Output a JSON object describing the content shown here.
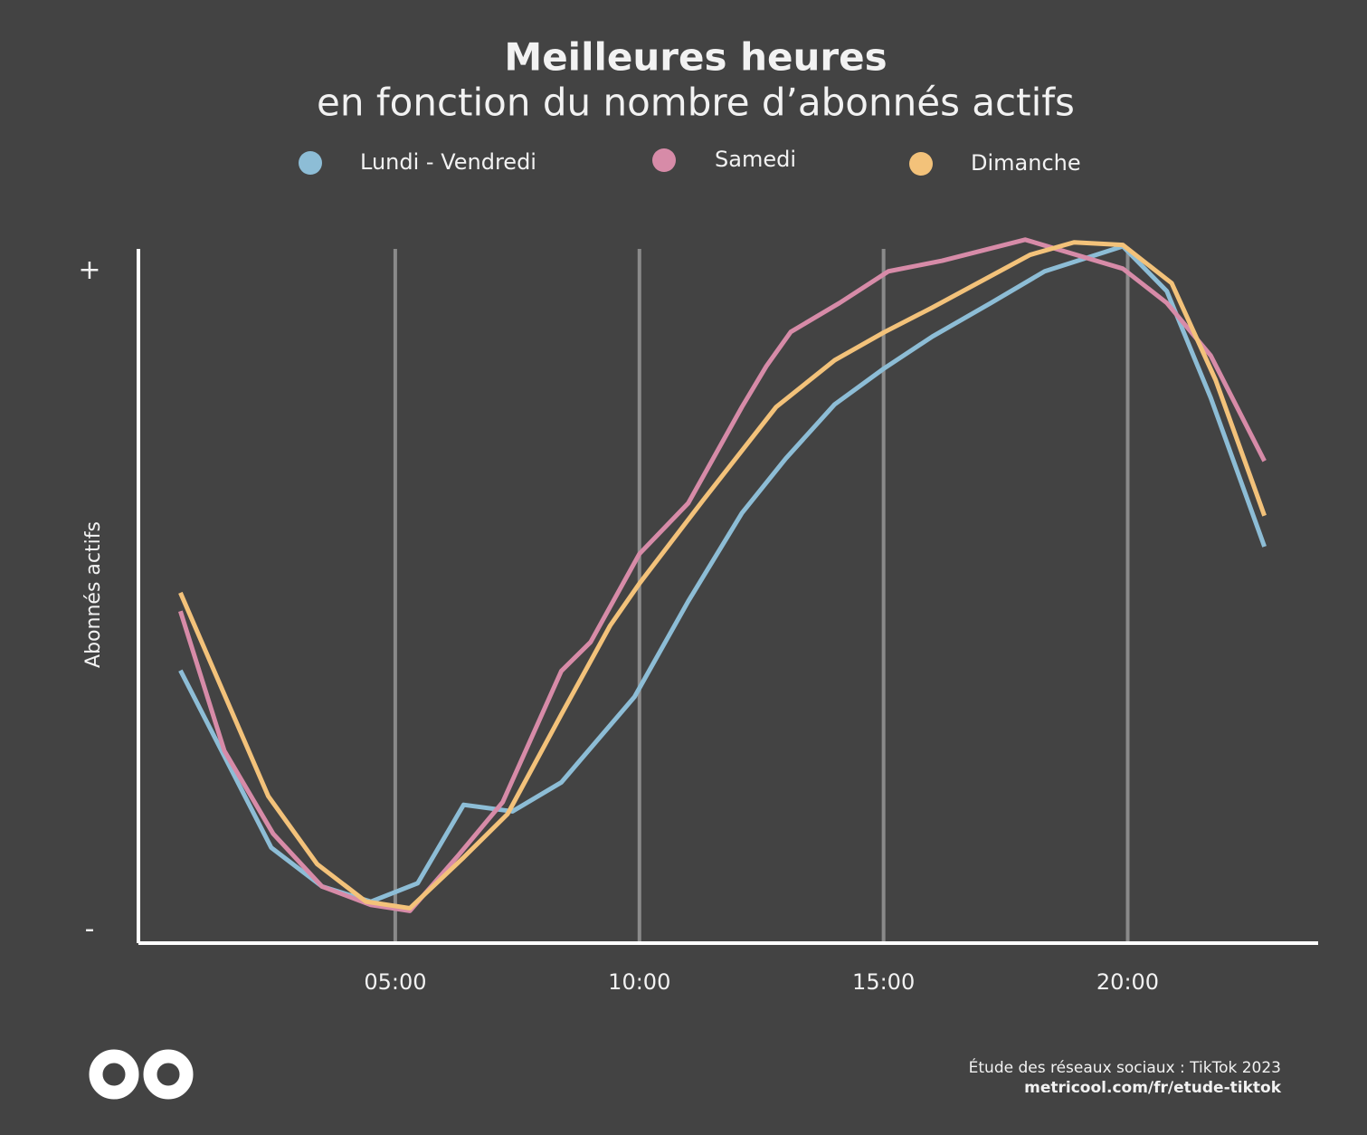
{
  "chart_data": {
    "type": "line",
    "title": "Meilleures heures",
    "subtitle": "en fonction du nombre d’abonnés actifs",
    "y_label": "Abonnés actifs",
    "xlim": [
      -0.26,
      23.9
    ],
    "xticks": [
      {
        "value": 5,
        "label": "05:00"
      },
      {
        "value": 10,
        "label": "10:00"
      },
      {
        "value": 15,
        "label": "15:00"
      },
      {
        "value": 20,
        "label": "20:00"
      }
    ],
    "ylim": [
      -2,
      103.4
    ],
    "yticks": [
      {
        "value": 0,
        "label": "-"
      },
      {
        "value": 100,
        "label": "+"
      }
    ],
    "grid": true,
    "series": [
      {
        "name": "Lundi - Vendredi",
        "color": "#8dbdd6",
        "x": [
          0.6,
          2.46,
          3.5,
          4.5,
          5.46,
          6.4,
          7.4,
          8.4,
          9.9,
          11,
          12.1,
          13,
          14,
          15,
          16,
          17.2,
          18.3,
          19.9,
          20.8,
          21.7,
          22.8
        ],
        "values": [
          39.4,
          12.5,
          6.6,
          4.3,
          7.1,
          19.0,
          18.0,
          22.4,
          35.4,
          49.9,
          63.3,
          71.6,
          79.8,
          85.2,
          90.1,
          95.2,
          100,
          103.8,
          97.0,
          80.8,
          58.2
        ]
      },
      {
        "name": "Samedi",
        "color": "#d78ba8",
        "x": [
          0.6,
          1.5,
          2.5,
          3.5,
          4.5,
          5.3,
          6.3,
          7.2,
          8.4,
          9,
          10,
          11,
          12.1,
          12.6,
          13.1,
          14.1,
          15.1,
          16.2,
          17.9,
          19.9,
          20.8,
          21.7,
          22.8
        ],
        "values": [
          48.4,
          27.2,
          14.6,
          6.6,
          3.8,
          2.9,
          11.4,
          19.4,
          39.3,
          43.7,
          57.1,
          64.8,
          79.4,
          85.6,
          90.8,
          95.2,
          100,
          101.6,
          104.8,
          100.4,
          95.2,
          87.2,
          71.2
        ]
      },
      {
        "name": "Dimanche",
        "color": "#f3c27a",
        "x": [
          0.6,
          2.4,
          3.4,
          4.4,
          5.3,
          6.4,
          7.3,
          8.4,
          9.4,
          10,
          11.3,
          12.8,
          14,
          15,
          16,
          18,
          18.9,
          19.9,
          20.9,
          21.8,
          22.8
        ],
        "values": [
          51.2,
          20.3,
          10.0,
          4.3,
          3.3,
          11.0,
          17.6,
          32.7,
          46.2,
          52.6,
          65.2,
          79.4,
          86.5,
          90.7,
          94.5,
          102.5,
          104.4,
          104.0,
          98.2,
          83.5,
          62.9
        ]
      }
    ],
    "source": "Étude des réseaux sociaux : TikTok 2023",
    "url": "metricool.com/fr/etude-tiktok"
  }
}
